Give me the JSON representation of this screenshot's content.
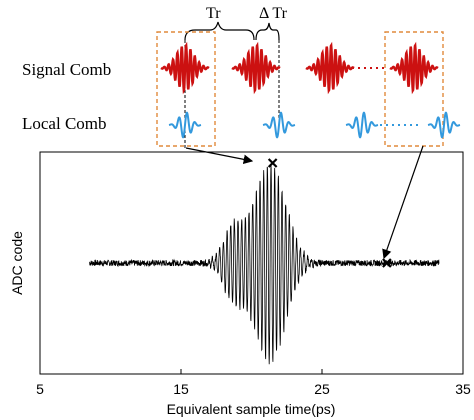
{
  "labels": {
    "signal_comb": "Signal Comb",
    "local_comb": "Local Comb",
    "tr": "Tr",
    "delta_tr": "Δ Tr"
  },
  "chart_data": {
    "type": "line",
    "xlabel": "Equivalent sample time(ps)",
    "ylabel": "ADC code",
    "xlim": [
      5,
      35
    ],
    "xticks": [
      5,
      15,
      25,
      35
    ],
    "xtick_labels": [
      "5",
      "15",
      "25",
      "35"
    ],
    "grid": false,
    "series": [
      {
        "values_description_free": true,
        "center": 21.3,
        "noise_amplitude": 0.03,
        "peak_amplitude": 1.0,
        "carrier_period_ps": 0.26,
        "x_start": 8.5,
        "x_end": 33.3
      }
    ],
    "annotations": [
      {
        "marker": "x",
        "x": 21.5,
        "y": 1.0
      },
      {
        "marker": "x",
        "x": 29.6,
        "y": 0.0
      }
    ]
  },
  "colors": {
    "signal": "#cc1111",
    "local": "#3399dd",
    "dashed_box": "#e08a3c",
    "axis": "#000000"
  }
}
